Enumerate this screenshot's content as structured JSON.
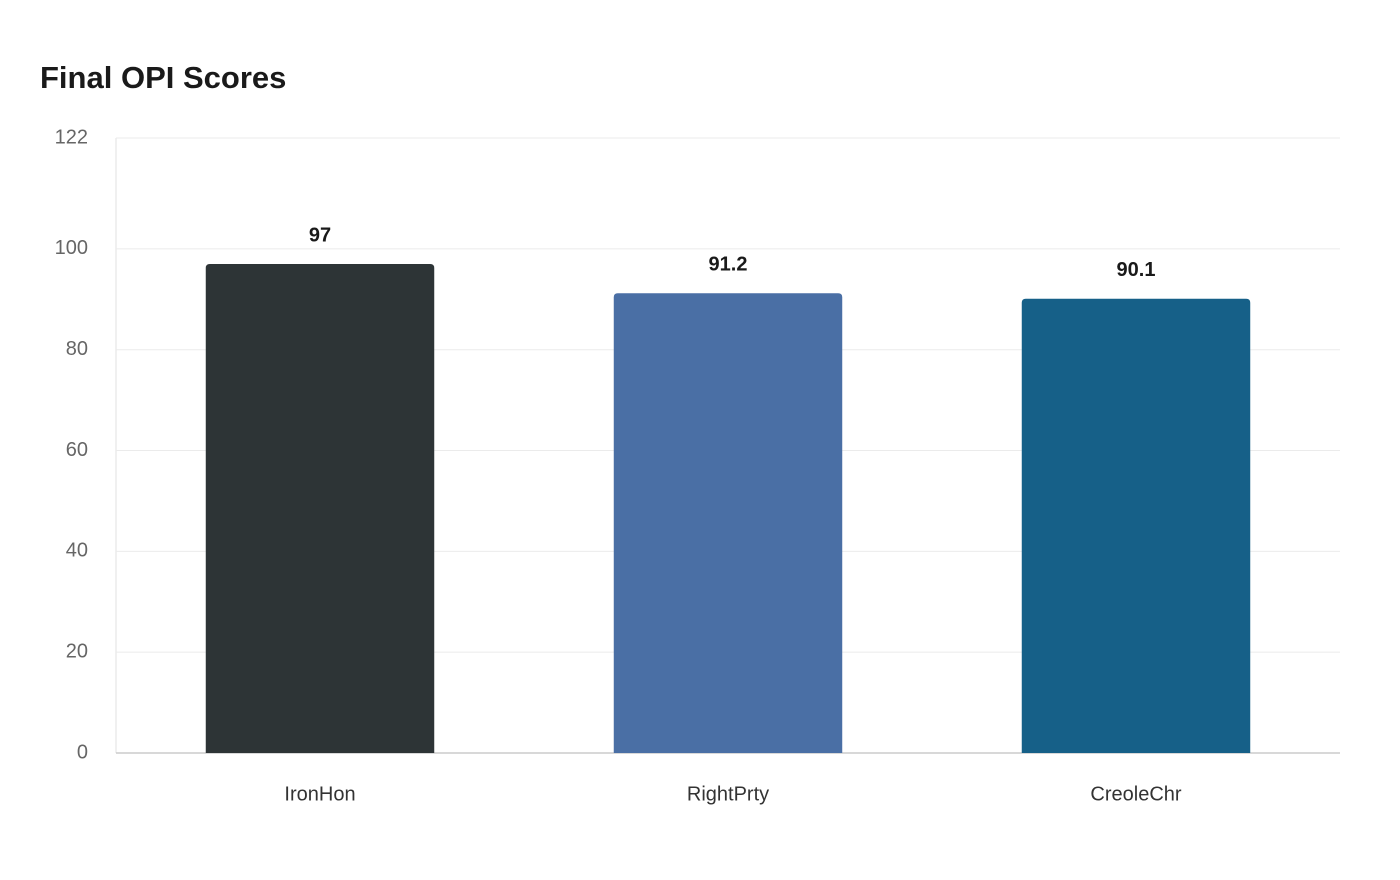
{
  "chart_data": {
    "type": "bar",
    "title": "Final OPI Scores",
    "categories": [
      "IronHon",
      "RightPrty",
      "CreoleChr"
    ],
    "values": [
      97,
      91.2,
      90.1
    ],
    "colors": [
      "#2d3436",
      "#4a6fa5",
      "#166088"
    ],
    "ylim": [
      0,
      122
    ],
    "yticks": [
      0,
      20,
      40,
      60,
      80,
      100,
      122
    ],
    "grid": true
  }
}
